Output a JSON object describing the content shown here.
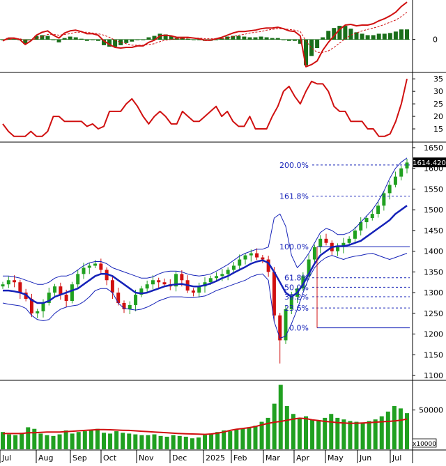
{
  "chart_data": [
    {
      "type": "histogram+line",
      "panel": "macd",
      "y_ticks": [
        0
      ],
      "y_tick_labels": [
        "0"
      ],
      "series": [
        {
          "role": "macd-line",
          "color": "#d01010",
          "values": [
            -2,
            2,
            2,
            0,
            -7,
            -2,
            6,
            10,
            12,
            6,
            2,
            9,
            12,
            13,
            11,
            8,
            8,
            6,
            -2,
            -7,
            -11,
            -12,
            -11,
            -11,
            -9,
            -9,
            -4,
            -1,
            5,
            6,
            5,
            3,
            3,
            3,
            2,
            1,
            -1,
            -1,
            1,
            3,
            6,
            9,
            11,
            11,
            12,
            13,
            15,
            16,
            16,
            17,
            15,
            12,
            11,
            5,
            -38,
            -35,
            -30,
            -15,
            -4,
            5,
            14,
            20,
            21,
            19,
            20,
            20,
            22,
            26,
            29,
            33,
            38,
            46,
            52
          ]
        },
        {
          "role": "signal-line",
          "color": "#d01010",
          "dashed": true,
          "values": [
            -1,
            0,
            1,
            1,
            -1,
            -1,
            1,
            4,
            7,
            7,
            6,
            7,
            8,
            10,
            10,
            10,
            9,
            8,
            6,
            3,
            -1,
            -4,
            -6,
            -8,
            -8,
            -8,
            -7,
            -6,
            -3,
            -1,
            0,
            1,
            1,
            2,
            2,
            2,
            1,
            1,
            1,
            1,
            2,
            4,
            6,
            7,
            9,
            10,
            11,
            13,
            14,
            15,
            15,
            14,
            13,
            11,
            -2,
            -12,
            -18,
            -18,
            -16,
            -11,
            -5,
            1,
            6,
            9,
            12,
            14,
            16,
            18,
            21,
            24,
            27,
            32,
            38
          ]
        },
        {
          "role": "histogram",
          "color": "#1a6e1a",
          "values": [
            -1,
            2,
            1,
            -1,
            -6,
            -1,
            5,
            6,
            5,
            -1,
            -4,
            2,
            4,
            3,
            1,
            -2,
            -1,
            -2,
            -8,
            -10,
            -10,
            -8,
            -5,
            -3,
            -1,
            -1,
            3,
            5,
            8,
            7,
            5,
            2,
            2,
            1,
            0,
            -1,
            -2,
            -2,
            0,
            2,
            4,
            5,
            5,
            4,
            3,
            3,
            4,
            3,
            2,
            2,
            0,
            -2,
            -2,
            -6,
            -36,
            -23,
            -12,
            3,
            12,
            16,
            19,
            19,
            15,
            10,
            8,
            6,
            6,
            8,
            8,
            9,
            11,
            14,
            14
          ]
        }
      ]
    },
    {
      "type": "line",
      "panel": "indicator",
      "y_ticks": [
        15,
        20,
        25,
        30,
        35
      ],
      "y_tick_labels": [
        "15",
        "20",
        "25",
        "30",
        "35"
      ],
      "ylim": [
        10,
        37
      ],
      "series": [
        {
          "color": "#d01010",
          "values": [
            17,
            14,
            12,
            12,
            12,
            14,
            12,
            12,
            14,
            20,
            20,
            18,
            18,
            18,
            18,
            16,
            17,
            15,
            16,
            22,
            22,
            22,
            25,
            27,
            24,
            20,
            17,
            20,
            22,
            20,
            17,
            17,
            22,
            20,
            18,
            18,
            20,
            22,
            24,
            20,
            22,
            18,
            16,
            16,
            20,
            15,
            15,
            15,
            20,
            24,
            30,
            32,
            28,
            25,
            30,
            34,
            33,
            33,
            30,
            24,
            22,
            22,
            18,
            18,
            18,
            15,
            15,
            12,
            12,
            13,
            18,
            25,
            35
          ]
        }
      ]
    },
    {
      "type": "candlestick",
      "panel": "price",
      "x_tick_labels": [
        "Jul",
        "Aug",
        "Sep",
        "Oct",
        "Nov",
        "Dec",
        "2025",
        "Feb",
        "Mar",
        "Apr",
        "May",
        "Jun",
        "Jul"
      ],
      "y_ticks": [
        1100,
        1150,
        1200,
        1250,
        1300,
        1350,
        1400,
        1450,
        1500,
        1550,
        1600,
        1650
      ],
      "y_tick_labels": [
        "1100",
        "1150",
        "1200",
        "1250",
        "1300",
        "1350",
        "1400",
        "1450",
        "1500",
        "1550",
        "1600",
        "1650"
      ],
      "ylim": [
        1090,
        1660
      ],
      "last_price_label": "1614.420",
      "last_price": 1614.42,
      "up_color": "#20a020",
      "down_color": "#d01010",
      "closes": [
        1320,
        1330,
        1325,
        1300,
        1285,
        1250,
        1255,
        1275,
        1300,
        1315,
        1295,
        1280,
        1320,
        1345,
        1360,
        1365,
        1370,
        1355,
        1330,
        1300,
        1275,
        1260,
        1270,
        1295,
        1310,
        1320,
        1330,
        1325,
        1320,
        1315,
        1345,
        1330,
        1305,
        1300,
        1315,
        1325,
        1335,
        1340,
        1345,
        1355,
        1365,
        1380,
        1390,
        1395,
        1385,
        1380,
        1350,
        1245,
        1185,
        1260,
        1290,
        1310,
        1340,
        1380,
        1410,
        1430,
        1420,
        1400,
        1410,
        1420,
        1430,
        1450,
        1470,
        1480,
        1490,
        1510,
        1540,
        1560,
        1580,
        1600,
        1614
      ],
      "series": [
        {
          "role": "moving-average",
          "color": "#1522b8",
          "values": [
            1305,
            1305,
            1303,
            1300,
            1295,
            1282,
            1275,
            1275,
            1280,
            1290,
            1295,
            1300,
            1305,
            1310,
            1320,
            1330,
            1340,
            1345,
            1345,
            1340,
            1330,
            1320,
            1310,
            1300,
            1298,
            1300,
            1305,
            1310,
            1315,
            1318,
            1320,
            1321,
            1318,
            1315,
            1315,
            1318,
            1322,
            1328,
            1335,
            1340,
            1348,
            1355,
            1362,
            1370,
            1375,
            1378,
            1372,
            1350,
            1325,
            1300,
            1290,
            1300,
            1320,
            1345,
            1370,
            1390,
            1400,
            1410,
            1412,
            1412,
            1415,
            1420,
            1425,
            1435,
            1445,
            1455,
            1465,
            1475,
            1490,
            1500,
            1510
          ]
        },
        {
          "role": "bollinger-upper",
          "color": "#1522b8",
          "values": [
            1340,
            1340,
            1338,
            1335,
            1330,
            1325,
            1320,
            1320,
            1325,
            1335,
            1340,
            1340,
            1345,
            1355,
            1365,
            1372,
            1375,
            1375,
            1370,
            1360,
            1355,
            1350,
            1345,
            1340,
            1335,
            1335,
            1338,
            1345,
            1350,
            1352,
            1352,
            1350,
            1345,
            1342,
            1340,
            1342,
            1345,
            1352,
            1360,
            1368,
            1378,
            1388,
            1395,
            1400,
            1405,
            1405,
            1410,
            1480,
            1490,
            1460,
            1390,
            1360,
            1375,
            1395,
            1420,
            1445,
            1455,
            1450,
            1440,
            1440,
            1445,
            1455,
            1470,
            1485,
            1500,
            1520,
            1545,
            1575,
            1600,
            1615,
            1625
          ]
        },
        {
          "role": "bollinger-lower",
          "color": "#1522b8",
          "values": [
            1275,
            1272,
            1270,
            1268,
            1262,
            1245,
            1235,
            1232,
            1235,
            1250,
            1260,
            1265,
            1268,
            1270,
            1278,
            1290,
            1305,
            1310,
            1310,
            1300,
            1275,
            1262,
            1260,
            1258,
            1260,
            1265,
            1272,
            1280,
            1285,
            1290,
            1290,
            1290,
            1288,
            1288,
            1290,
            1292,
            1298,
            1305,
            1310,
            1315,
            1320,
            1325,
            1330,
            1338,
            1343,
            1345,
            1330,
            1230,
            1190,
            1195,
            1225,
            1260,
            1300,
            1335,
            1360,
            1375,
            1385,
            1390,
            1385,
            1380,
            1385,
            1388,
            1390,
            1393,
            1395,
            1390,
            1385,
            1380,
            1385,
            1390,
            1395
          ]
        }
      ],
      "fibonacci": {
        "levels": [
          {
            "label": "0.0%",
            "value": 1215
          },
          {
            "label": "23.6%",
            "value": 1263
          },
          {
            "label": "38.2%",
            "value": 1290
          },
          {
            "label": "50.0%",
            "value": 1313
          },
          {
            "label": "61.8%",
            "value": 1336
          },
          {
            "label": "100.0%",
            "value": 1411
          },
          {
            "label": "161.8%",
            "value": 1533
          },
          {
            "label": "200.0%",
            "value": 1608
          }
        ]
      }
    },
    {
      "type": "bar+line",
      "panel": "volume",
      "y_ticks": [
        50000
      ],
      "y_tick_labels": [
        "50000"
      ],
      "unit_label": "x10000",
      "ylim": [
        0,
        86000
      ],
      "bar_color": "#20a020",
      "ma_color": "#d01010",
      "volumes": [
        22000,
        19000,
        18000,
        21000,
        28000,
        26000,
        20000,
        18000,
        17000,
        19000,
        24000,
        20000,
        22000,
        23000,
        25000,
        26000,
        21000,
        20000,
        23000,
        21000,
        20000,
        19000,
        18000,
        18000,
        19000,
        17000,
        16000,
        18000,
        17000,
        16000,
        14000,
        15000,
        18000,
        20000,
        22000,
        24000,
        23000,
        25000,
        27000,
        28000,
        30000,
        35000,
        40000,
        58000,
        82000,
        55000,
        45000,
        40000,
        42000,
        38000,
        36000,
        40000,
        45000,
        40000,
        38000,
        36000,
        35000,
        34000,
        36000,
        38000,
        42000,
        48000,
        55000,
        52000,
        46000
      ],
      "volume_ma": [
        20000,
        20000,
        20000,
        20000,
        21000,
        21000,
        21500,
        22000,
        22000,
        22000,
        22500,
        23000,
        23500,
        24000,
        24500,
        25000,
        25000,
        24800,
        24500,
        24200,
        24000,
        23500,
        23000,
        22500,
        22000,
        21500,
        21000,
        20500,
        20000,
        19800,
        19500,
        19200,
        19000,
        19500,
        20500,
        22000,
        24000,
        25500,
        26500,
        27500,
        29000,
        31000,
        33000,
        34500,
        35500,
        37000,
        38500,
        39500,
        39000,
        37500,
        36500,
        35500,
        34800,
        34000,
        33500,
        33000,
        33200,
        33500,
        34000,
        34500,
        35000,
        35500,
        36000,
        37000,
        38500
      ]
    }
  ]
}
